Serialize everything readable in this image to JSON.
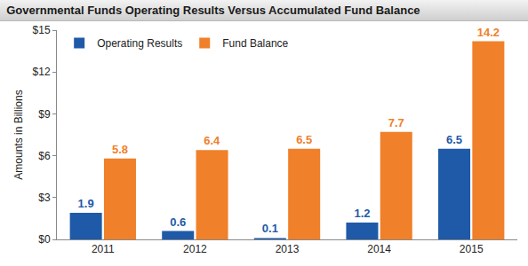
{
  "chart_data": {
    "type": "bar",
    "title": "Governmental Funds Operating Results Versus Accumulated Fund Balance",
    "y_label": "Amounts in Billions",
    "categories": [
      "2011",
      "2012",
      "2013",
      "2014",
      "2015"
    ],
    "series": [
      {
        "name": "Operating Results",
        "color": "#1f5aa8",
        "values": [
          1.9,
          0.6,
          0.1,
          1.2,
          6.5
        ]
      },
      {
        "name": "Fund Balance",
        "color": "#f0802a",
        "values": [
          5.8,
          6.4,
          6.5,
          7.7,
          14.2
        ]
      }
    ],
    "ylim": [
      0,
      15
    ],
    "yticks": [
      {
        "value": 0,
        "label": "$0"
      },
      {
        "value": 3,
        "label": "$3"
      },
      {
        "value": 6,
        "label": "$6"
      },
      {
        "value": 9,
        "label": "$9"
      },
      {
        "value": 12,
        "label": "$12"
      },
      {
        "value": 15,
        "label": "$15"
      }
    ],
    "grid": false,
    "legend": "upper left",
    "data_labels": true
  }
}
